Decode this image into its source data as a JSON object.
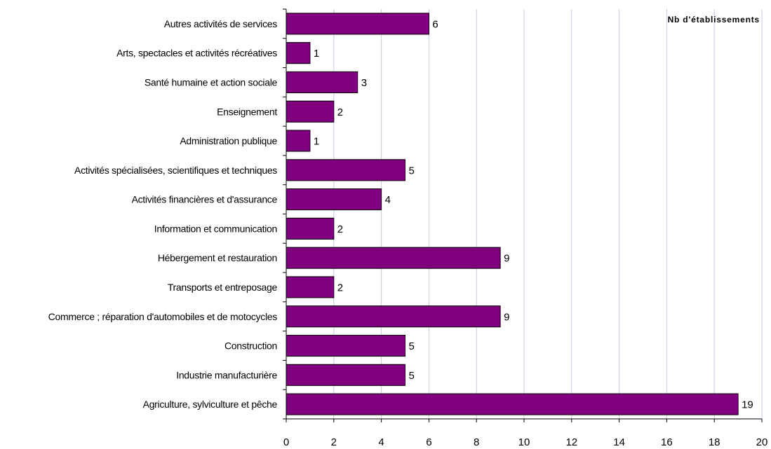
{
  "chart_data": {
    "type": "bar",
    "orientation": "horizontal",
    "categories": [
      "Autres activités de services",
      "Arts, spectacles et activités récréatives",
      "Santé humaine et action sociale",
      "Enseignement",
      "Administration publique",
      "Activités spécialisées, scientifiques et techniques",
      "Activités financières et d'assurance",
      "Information et communication",
      "Hébergement et restauration",
      "Transports et entreposage",
      "Commerce ; réparation d'automobiles et de motocycles",
      "Construction",
      "Industrie manufacturière",
      "Agriculture, sylviculture et pêche"
    ],
    "series": [
      {
        "name": "Nb d'établissements",
        "values": [
          6,
          1,
          3,
          2,
          1,
          5,
          4,
          2,
          9,
          2,
          9,
          5,
          5,
          19
        ]
      }
    ],
    "title": "",
    "xlabel": "",
    "ylabel": "",
    "xlim": [
      0,
      20
    ],
    "xticks": [
      0,
      2,
      4,
      6,
      8,
      10,
      12,
      14,
      16,
      18,
      20
    ],
    "grid": true,
    "legend_position": "top-right",
    "bar_color": "#800080",
    "bar_edge_color": "#000000",
    "grid_color": "#c8c8e6"
  }
}
